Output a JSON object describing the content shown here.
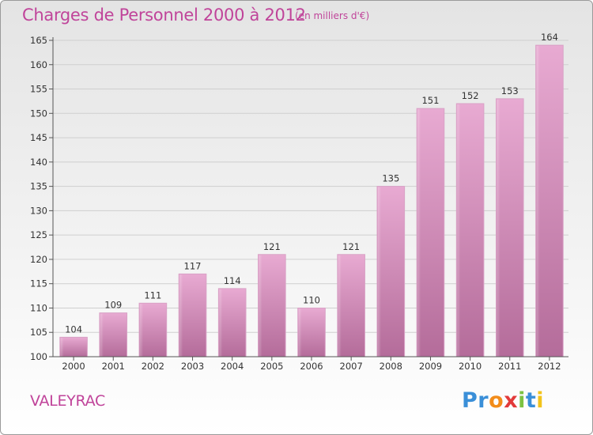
{
  "header": {
    "title": "Charges de Personnel 2000 à 2012",
    "subtitle": "(en milliers d'€)"
  },
  "footer": {
    "place": "VALEYRAC"
  },
  "logo": {
    "letters": [
      {
        "char": "P",
        "color": "#3a8fd8"
      },
      {
        "char": "r",
        "color": "#3a8fd8"
      },
      {
        "char": "o",
        "color": "#f28c1a"
      },
      {
        "char": "x",
        "color": "#e23a3a"
      },
      {
        "char": "i",
        "color": "#7cc242"
      },
      {
        "char": "t",
        "color": "#3a8fd8"
      },
      {
        "char": "i",
        "color": "#f2c31a"
      }
    ]
  },
  "chart_data": {
    "type": "bar",
    "title": "Charges de Personnel 2000 à 2012",
    "subtitle": "(en milliers d'€)",
    "categories": [
      "2000",
      "2001",
      "2002",
      "2003",
      "2004",
      "2005",
      "2006",
      "2007",
      "2008",
      "2009",
      "2010",
      "2011",
      "2012"
    ],
    "values": [
      104,
      109,
      111,
      117,
      114,
      121,
      110,
      121,
      135,
      151,
      152,
      153,
      164
    ],
    "ylim": [
      100,
      165
    ],
    "yticks": [
      100,
      105,
      110,
      115,
      120,
      125,
      130,
      135,
      140,
      145,
      150,
      155,
      160,
      165
    ],
    "grid": true,
    "bar_color": "#d98fbd"
  }
}
